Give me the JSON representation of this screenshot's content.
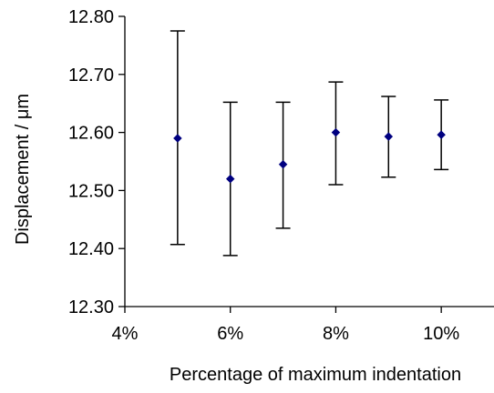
{
  "chart_data": {
    "type": "scatter",
    "title": "",
    "xlabel": "Percentage of maximum indentation",
    "ylabel_prefix": "Displacement / ",
    "ylabel_unit": "μm",
    "xlim": [
      4,
      11
    ],
    "ylim": [
      12.3,
      12.8
    ],
    "x_ticks": [
      4,
      6,
      8,
      10
    ],
    "x_tick_labels": [
      "4%",
      "6%",
      "8%",
      "10%"
    ],
    "y_ticks": [
      12.3,
      12.4,
      12.5,
      12.6,
      12.7,
      12.8
    ],
    "y_tick_labels": [
      "12.30",
      "12.40",
      "12.50",
      "12.60",
      "12.70",
      "12.80"
    ],
    "grid": false,
    "legend": "none",
    "marker": "diamond",
    "marker_color": "#000080",
    "error_bar_color": "#000000",
    "series": [
      {
        "points": [
          {
            "x": 5,
            "y": 12.59,
            "err_low": 12.407,
            "err_high": 12.775
          },
          {
            "x": 6,
            "y": 12.52,
            "err_low": 12.388,
            "err_high": 12.652
          },
          {
            "x": 7,
            "y": 12.545,
            "err_low": 12.435,
            "err_high": 12.652
          },
          {
            "x": 8,
            "y": 12.6,
            "err_low": 12.51,
            "err_high": 12.687
          },
          {
            "x": 9,
            "y": 12.593,
            "err_low": 12.523,
            "err_high": 12.662
          },
          {
            "x": 10,
            "y": 12.596,
            "err_low": 12.536,
            "err_high": 12.656
          }
        ]
      }
    ]
  }
}
